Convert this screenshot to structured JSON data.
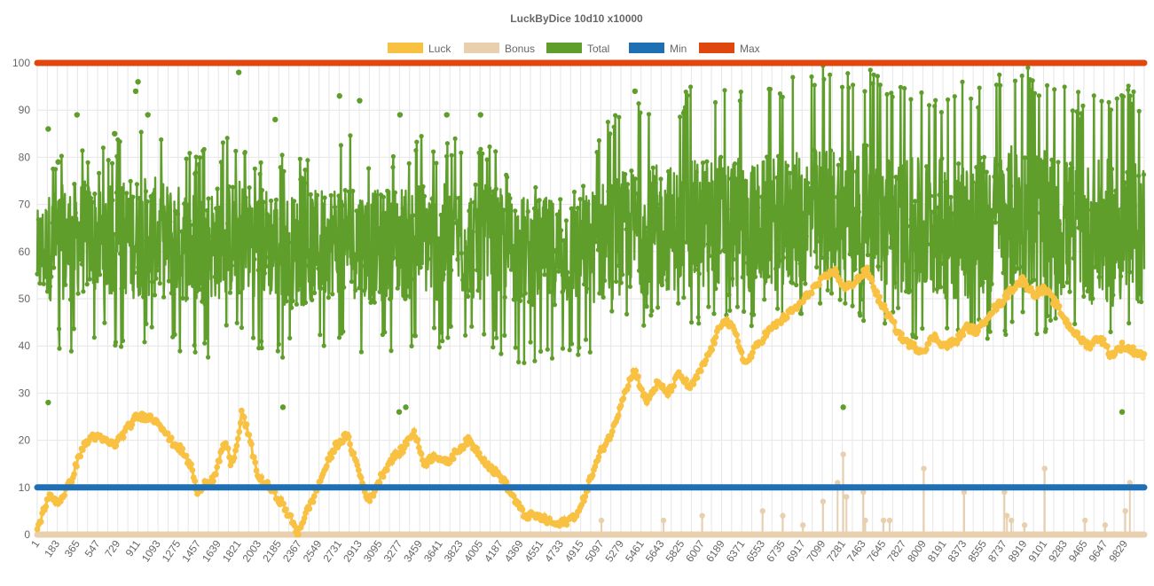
{
  "chart_data": {
    "type": "line",
    "title": "LuckByDice 10d10 x10000",
    "xlabel": "",
    "ylabel": "",
    "ylim": [
      0,
      100
    ],
    "y_ticks": [
      0,
      10,
      20,
      30,
      40,
      50,
      60,
      70,
      80,
      90,
      100
    ],
    "x_range": [
      1,
      10000
    ],
    "x_tick_labels": [
      "1",
      "183",
      "365",
      "547",
      "729",
      "911",
      "1093",
      "1275",
      "1457",
      "1639",
      "1821",
      "2003",
      "2185",
      "2367",
      "2549",
      "2731",
      "2913",
      "3095",
      "3277",
      "3459",
      "3641",
      "3823",
      "4005",
      "4187",
      "4369",
      "4551",
      "4733",
      "4915",
      "5097",
      "5279",
      "5461",
      "5643",
      "5825",
      "6007",
      "6189",
      "6371",
      "6553",
      "6735",
      "6917",
      "7099",
      "7281",
      "7463",
      "7645",
      "7827",
      "8009",
      "8191",
      "8373",
      "8555",
      "8737",
      "8919",
      "9101",
      "9283",
      "9465",
      "9647",
      "9829"
    ],
    "grid": true,
    "legend_position": "top-center",
    "colors": {
      "luck": "#f9c142",
      "bonus": "#e8cfae",
      "total": "#5f9e2a",
      "min": "#1f6fb5",
      "max": "#e0470e"
    },
    "series": [
      {
        "name": "Luck",
        "key": "luck",
        "x": [
          1,
          100,
          200,
          300,
          400,
          500,
          600,
          700,
          800,
          900,
          1000,
          1100,
          1200,
          1300,
          1400,
          1450,
          1500,
          1600,
          1700,
          1750,
          1800,
          1850,
          1900,
          2000,
          2100,
          2200,
          2300,
          2350,
          2400,
          2500,
          2600,
          2700,
          2800,
          2900,
          2950,
          3000,
          3100,
          3200,
          3300,
          3400,
          3500,
          3600,
          3700,
          3800,
          3900,
          4000,
          4100,
          4200,
          4300,
          4400,
          4500,
          4600,
          4700,
          4800,
          4900,
          5000,
          5100,
          5200,
          5300,
          5400,
          5500,
          5600,
          5700,
          5800,
          5900,
          6000,
          6100,
          6200,
          6300,
          6400,
          6500,
          6600,
          6700,
          6800,
          6900,
          7000,
          7100,
          7200,
          7300,
          7400,
          7500,
          7600,
          7700,
          7800,
          7900,
          8000,
          8100,
          8200,
          8300,
          8400,
          8500,
          8600,
          8700,
          8800,
          8900,
          9000,
          9100,
          9200,
          9300,
          9400,
          9500,
          9600,
          9700,
          9800,
          9900,
          10000
        ],
        "values": [
          1,
          8,
          7,
          11,
          18,
          21,
          20,
          19,
          22,
          25,
          25,
          24,
          20,
          18,
          14,
          8,
          11,
          12,
          20,
          15,
          18,
          26,
          22,
          12,
          10,
          7,
          3,
          0,
          3,
          8,
          14,
          19,
          21,
          14,
          10,
          7,
          12,
          16,
          18,
          22,
          15,
          17,
          15,
          18,
          20,
          17,
          14,
          12,
          8,
          4,
          4,
          3,
          2,
          3,
          5,
          12,
          18,
          22,
          30,
          35,
          28,
          32,
          30,
          34,
          31,
          35,
          40,
          46,
          43,
          36,
          40,
          43,
          45,
          47,
          49,
          52,
          54,
          56,
          52,
          54,
          56,
          50,
          46,
          42,
          40,
          39,
          42,
          40,
          41,
          44,
          43,
          47,
          49,
          52,
          54,
          51,
          52,
          49,
          45,
          42,
          40,
          42,
          38,
          40,
          39,
          38
        ]
      },
      {
        "name": "Bonus",
        "key": "bonus",
        "x": [
          5097,
          5658,
          6007,
          6553,
          6735,
          6917,
          7099,
          7230,
          7281,
          7310,
          7463,
          7480,
          7645,
          7700,
          8009,
          8373,
          8737,
          8760,
          8800,
          8919,
          9101,
          9465,
          9647,
          9829,
          9870
        ],
        "values": [
          3,
          3,
          4,
          5,
          4,
          2,
          7,
          11,
          17,
          8,
          9,
          3,
          3,
          3,
          14,
          9,
          9,
          4,
          3,
          2,
          14,
          3,
          2,
          5,
          11
        ]
      },
      {
        "name": "Total",
        "key": "total",
        "x": [
          1,
          100,
          200,
          300,
          400,
          500,
          600,
          700,
          800,
          900,
          1000,
          1100,
          1200,
          1300,
          1400,
          1500,
          1600,
          1700,
          1800,
          1900,
          2000,
          2100,
          2200,
          2300,
          2400,
          2500,
          2600,
          2700,
          2800,
          2900,
          3000,
          3100,
          3200,
          3300,
          3400,
          3500,
          3600,
          3700,
          3800,
          3900,
          4000,
          4100,
          4200,
          4300,
          4400,
          4500,
          4600,
          4700,
          4800,
          4900,
          5000,
          5100,
          5200,
          5300,
          5400,
          5500,
          5600,
          5700,
          5800,
          5900,
          6000,
          6100,
          6200,
          6300,
          6400,
          6500,
          6600,
          6700,
          6800,
          6900,
          7000,
          7100,
          7200,
          7300,
          7400,
          7500,
          7600,
          7700,
          7800,
          7900,
          8000,
          8100,
          8200,
          8300,
          8400,
          8500,
          8600,
          8700,
          8800,
          8900,
          9000,
          9100,
          9200,
          9300,
          9400,
          9500,
          9600,
          9700,
          9800,
          9900,
          10000
        ],
        "center": [
          59,
          61,
          62,
          62,
          63,
          63,
          62,
          62,
          63,
          63,
          63,
          63,
          62,
          62,
          61,
          61,
          62,
          62,
          63,
          63,
          62,
          62,
          61,
          60,
          60,
          61,
          62,
          63,
          63,
          62,
          61,
          61,
          62,
          62,
          62,
          63,
          62,
          62,
          62,
          62,
          62,
          62,
          61,
          61,
          60,
          60,
          60,
          60,
          60,
          60,
          61,
          62,
          63,
          64,
          65,
          64,
          65,
          65,
          65,
          65,
          66,
          66,
          67,
          66,
          65,
          65,
          66,
          66,
          66,
          67,
          67,
          68,
          68,
          68,
          68,
          68,
          67,
          66,
          66,
          65,
          65,
          65,
          65,
          65,
          65,
          65,
          66,
          66,
          67,
          67,
          67,
          66,
          65,
          65,
          64,
          64,
          64,
          64,
          64,
          64,
          64
        ],
        "upper": [
          75,
          80,
          82,
          83,
          84,
          82,
          83,
          84,
          86,
          88,
          87,
          86,
          84,
          83,
          82,
          82,
          83,
          84,
          86,
          84,
          82,
          82,
          81,
          80,
          80,
          81,
          83,
          84,
          85,
          84,
          82,
          82,
          83,
          84,
          85,
          85,
          84,
          84,
          85,
          84,
          84,
          82,
          81,
          80,
          79,
          78,
          77,
          76,
          77,
          78,
          82,
          88,
          90,
          92,
          92,
          92,
          93,
          94,
          94,
          95,
          96,
          97,
          98,
          97,
          95,
          95,
          96,
          97,
          97,
          98,
          99,
          100,
          100,
          100,
          100,
          99,
          98,
          97,
          96,
          95,
          95,
          95,
          95,
          96,
          96,
          96,
          97,
          98,
          99,
          99,
          99,
          97,
          96,
          95,
          94,
          94,
          95,
          96,
          96,
          96,
          95
        ],
        "lower": [
          40,
          38,
          38,
          38,
          39,
          40,
          39,
          39,
          40,
          40,
          40,
          40,
          39,
          38,
          37,
          37,
          38,
          39,
          40,
          40,
          39,
          38,
          37,
          36,
          37,
          38,
          39,
          40,
          40,
          39,
          38,
          38,
          39,
          39,
          39,
          40,
          39,
          39,
          39,
          39,
          39,
          38,
          37,
          37,
          36,
          36,
          35,
          35,
          35,
          36,
          38,
          40,
          42,
          44,
          44,
          44,
          44,
          45,
          45,
          44,
          44,
          45,
          46,
          45,
          44,
          44,
          44,
          45,
          45,
          45,
          45,
          46,
          46,
          46,
          46,
          45,
          44,
          43,
          42,
          41,
          41,
          40,
          40,
          40,
          40,
          41,
          41,
          42,
          42,
          42,
          42,
          41,
          40,
          40,
          39,
          39,
          39,
          39,
          39,
          39,
          39
        ],
        "notable_points": [
          [
            100,
            86
          ],
          [
            190,
            79
          ],
          [
            360,
            89
          ],
          [
            700,
            85
          ],
          [
            890,
            94
          ],
          [
            911,
            96
          ],
          [
            1000,
            89
          ],
          [
            1821,
            98
          ],
          [
            2150,
            88
          ],
          [
            2731,
            93
          ],
          [
            2913,
            92
          ],
          [
            3277,
            89
          ],
          [
            3700,
            89
          ],
          [
            4005,
            89
          ],
          [
            5150,
            100
          ],
          [
            5400,
            94
          ],
          [
            5500,
            100
          ],
          [
            7281,
            27
          ],
          [
            9101,
            100
          ],
          [
            9720,
            100
          ],
          [
            9800,
            26
          ],
          [
            100,
            28
          ],
          [
            2220,
            27
          ],
          [
            3270,
            26
          ],
          [
            3330,
            27
          ]
        ]
      },
      {
        "name": "Min",
        "key": "min",
        "x": [
          1,
          10000
        ],
        "values": [
          10,
          10
        ]
      },
      {
        "name": "Max",
        "key": "max",
        "x": [
          1,
          10000
        ],
        "values": [
          100,
          100
        ]
      }
    ]
  }
}
